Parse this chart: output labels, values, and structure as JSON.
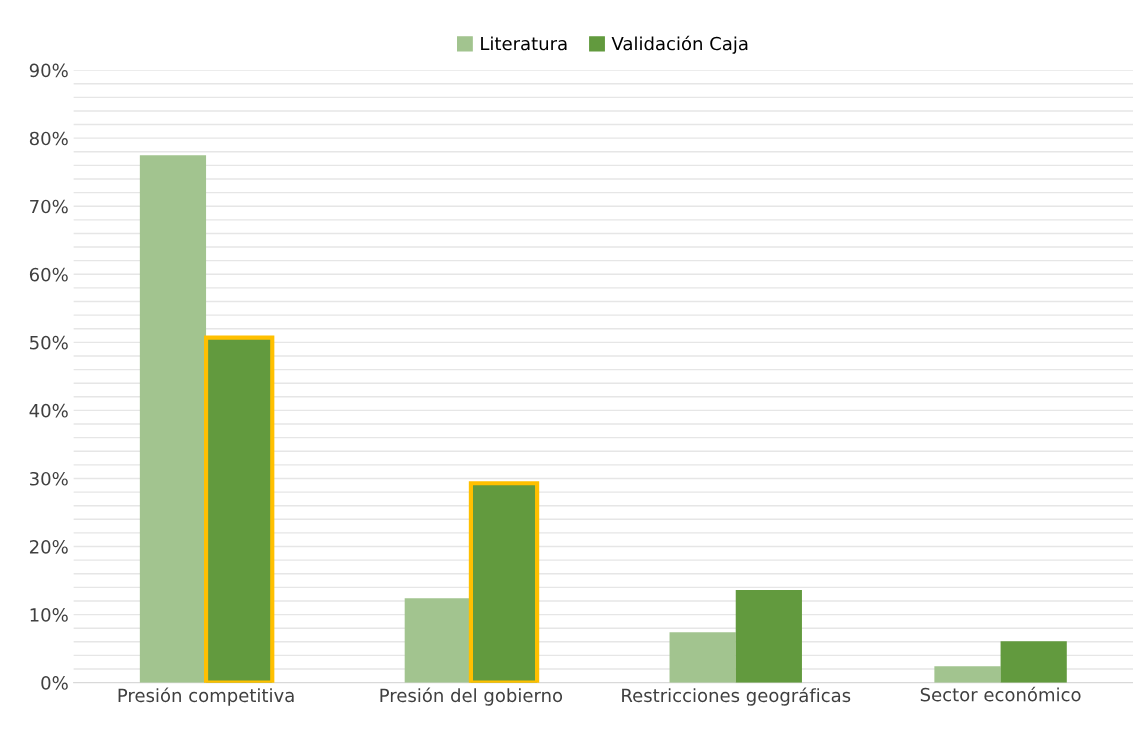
{
  "chart_data": {
    "type": "bar",
    "categories": [
      "Presión competitiva",
      "Presión del gobierno",
      "Restricciones geográficas",
      "Sector económico"
    ],
    "series": [
      {
        "name": "Literatura",
        "color": "#a2c48f",
        "values": [
          77.5,
          12.4,
          7.4,
          2.4
        ]
      },
      {
        "name": "Validación Caja",
        "color": "#629a3e",
        "values": [
          50.7,
          29.3,
          13.6,
          6.1
        ]
      }
    ],
    "ylim": [
      0,
      90
    ],
    "yticks": [
      {
        "value": 0,
        "label": "0%"
      },
      {
        "value": 2,
        "label": null
      },
      {
        "value": 4,
        "label": null
      },
      {
        "value": 6,
        "label": null
      },
      {
        "value": 8,
        "label": null
      },
      {
        "value": 10,
        "label": "10%"
      },
      {
        "value": 12,
        "label": null
      },
      {
        "value": 14,
        "label": null
      },
      {
        "value": 16,
        "label": null
      },
      {
        "value": 18,
        "label": null
      },
      {
        "value": 20,
        "label": "20%"
      },
      {
        "value": 22,
        "label": null
      },
      {
        "value": 24,
        "label": null
      },
      {
        "value": 26,
        "label": null
      },
      {
        "value": 28,
        "label": null
      },
      {
        "value": 30,
        "label": "30%"
      },
      {
        "value": 32,
        "label": null
      },
      {
        "value": 34,
        "label": null
      },
      {
        "value": 36,
        "label": null
      },
      {
        "value": 38,
        "label": null
      },
      {
        "value": 40,
        "label": "40%"
      },
      {
        "value": 42,
        "label": null
      },
      {
        "value": 44,
        "label": null
      },
      {
        "value": 46,
        "label": null
      },
      {
        "value": 48,
        "label": null
      },
      {
        "value": 50,
        "label": "50%"
      },
      {
        "value": 52,
        "label": null
      },
      {
        "value": 54,
        "label": null
      },
      {
        "value": 56,
        "label": null
      },
      {
        "value": 58,
        "label": null
      },
      {
        "value": 60,
        "label": "60%"
      },
      {
        "value": 62,
        "label": null
      },
      {
        "value": 64,
        "label": null
      },
      {
        "value": 66,
        "label": null
      },
      {
        "value": 68,
        "label": null
      },
      {
        "value": 70,
        "label": "70%"
      },
      {
        "value": 72,
        "label": null
      },
      {
        "value": 74,
        "label": null
      },
      {
        "value": 76,
        "label": null
      },
      {
        "value": 78,
        "label": null
      },
      {
        "value": 80,
        "label": "80%"
      },
      {
        "value": 82,
        "label": null
      },
      {
        "value": 84,
        "label": null
      },
      {
        "value": 86,
        "label": null
      },
      {
        "value": 88,
        "label": null
      },
      {
        "value": 90,
        "label": "90%"
      }
    ],
    "grid": "y",
    "legend": "top"
  }
}
